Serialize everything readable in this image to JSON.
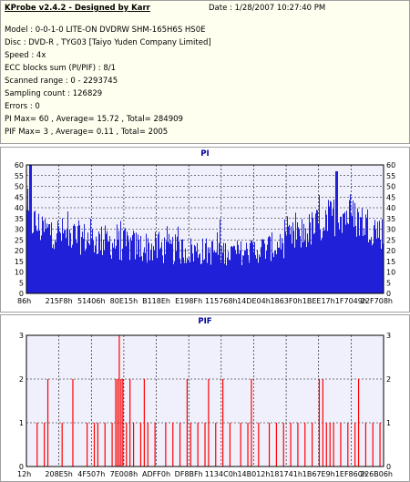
{
  "info": {
    "title": "KProbe v2.4.2 - Designed by Karr",
    "date": "Date : 1/28/2007 10:27:40 PM",
    "lines": [
      "Model : 0-0-1-0 LITE-ON DVDRW SHM-165H6S HS0E",
      "Disc : DVD-R , TYG03 [Taiyo Yuden Company Limited]",
      "Speed : 4x",
      "ECC blocks sum (PI/PIF) : 8/1",
      "Scanned range : 0 - 2293745",
      "Sampling count : 126829",
      "Errors : 0",
      "PI Max= 60 , Average= 15.72 , Total= 284909",
      "PIF Max= 3 , Average= 0.11 , Total= 2005"
    ]
  },
  "colors": {
    "pi": "#2020d8",
    "pif": "#ff0000",
    "plot_bg": "#f0f0fc",
    "grid": "#000000"
  },
  "chart_data": [
    {
      "type": "bar",
      "title": "PI",
      "ylim": [
        0,
        60
      ],
      "yticks": [
        0,
        5,
        10,
        15,
        20,
        25,
        30,
        35,
        40,
        45,
        50,
        55,
        60
      ],
      "xticks": [
        "86h",
        "215F8h",
        "51406h",
        "80E15h",
        "B118Eh",
        "E198Fh",
        "115768h",
        "14DE04h",
        "1863F0h",
        "1BEE17h",
        "1F7049h",
        "22F708h"
      ],
      "grid": true,
      "profile": [
        {
          "x": 0.0,
          "base": 36,
          "noise": 10
        },
        {
          "x": 0.04,
          "base": 30,
          "noise": 8
        },
        {
          "x": 0.15,
          "base": 26,
          "noise": 8
        },
        {
          "x": 0.3,
          "base": 22,
          "noise": 8
        },
        {
          "x": 0.45,
          "base": 20,
          "noise": 7
        },
        {
          "x": 0.6,
          "base": 19,
          "noise": 6
        },
        {
          "x": 0.7,
          "base": 22,
          "noise": 7
        },
        {
          "x": 0.8,
          "base": 30,
          "noise": 9
        },
        {
          "x": 0.88,
          "base": 38,
          "noise": 10
        },
        {
          "x": 0.95,
          "base": 33,
          "noise": 9
        },
        {
          "x": 1.0,
          "base": 28,
          "noise": 8
        }
      ],
      "peaks": [
        {
          "x": 0.01,
          "value": 60
        },
        {
          "x": 0.87,
          "value": 57
        }
      ]
    },
    {
      "type": "bar",
      "title": "PIF",
      "ylim": [
        0,
        3
      ],
      "yticks": [
        0,
        1,
        2,
        3
      ],
      "xticks": [
        "12h",
        "208E5h",
        "4F507h",
        "7E008h",
        "ADFF0h",
        "DF8BFh",
        "1134C0h",
        "14B012h",
        "181741h",
        "1B67E9h",
        "1EF860h",
        "226B06h"
      ],
      "grid": true,
      "spikes": [
        {
          "x": 0.03,
          "value": 1
        },
        {
          "x": 0.05,
          "value": 1
        },
        {
          "x": 0.06,
          "value": 2
        },
        {
          "x": 0.1,
          "value": 1
        },
        {
          "x": 0.13,
          "value": 2
        },
        {
          "x": 0.17,
          "value": 1
        },
        {
          "x": 0.19,
          "value": 1
        },
        {
          "x": 0.2,
          "value": 1
        },
        {
          "x": 0.22,
          "value": 1
        },
        {
          "x": 0.24,
          "value": 1
        },
        {
          "x": 0.25,
          "value": 2
        },
        {
          "x": 0.255,
          "value": 2
        },
        {
          "x": 0.26,
          "value": 3
        },
        {
          "x": 0.265,
          "value": 2
        },
        {
          "x": 0.27,
          "value": 2
        },
        {
          "x": 0.28,
          "value": 1
        },
        {
          "x": 0.29,
          "value": 2
        },
        {
          "x": 0.3,
          "value": 1
        },
        {
          "x": 0.32,
          "value": 1
        },
        {
          "x": 0.33,
          "value": 2
        },
        {
          "x": 0.34,
          "value": 1
        },
        {
          "x": 0.36,
          "value": 1
        },
        {
          "x": 0.39,
          "value": 1
        },
        {
          "x": 0.41,
          "value": 1
        },
        {
          "x": 0.43,
          "value": 1
        },
        {
          "x": 0.45,
          "value": 2
        },
        {
          "x": 0.46,
          "value": 1
        },
        {
          "x": 0.48,
          "value": 1
        },
        {
          "x": 0.5,
          "value": 1
        },
        {
          "x": 0.51,
          "value": 2
        },
        {
          "x": 0.53,
          "value": 1
        },
        {
          "x": 0.55,
          "value": 2
        },
        {
          "x": 0.57,
          "value": 1
        },
        {
          "x": 0.6,
          "value": 1
        },
        {
          "x": 0.62,
          "value": 1
        },
        {
          "x": 0.63,
          "value": 2
        },
        {
          "x": 0.65,
          "value": 1
        },
        {
          "x": 0.68,
          "value": 1
        },
        {
          "x": 0.7,
          "value": 1
        },
        {
          "x": 0.72,
          "value": 1
        },
        {
          "x": 0.74,
          "value": 1
        },
        {
          "x": 0.76,
          "value": 1
        },
        {
          "x": 0.78,
          "value": 1
        },
        {
          "x": 0.8,
          "value": 1
        },
        {
          "x": 0.82,
          "value": 2
        },
        {
          "x": 0.83,
          "value": 2
        },
        {
          "x": 0.84,
          "value": 1
        },
        {
          "x": 0.85,
          "value": 1
        },
        {
          "x": 0.86,
          "value": 1
        },
        {
          "x": 0.88,
          "value": 1
        },
        {
          "x": 0.9,
          "value": 1
        },
        {
          "x": 0.92,
          "value": 1
        },
        {
          "x": 0.93,
          "value": 2
        },
        {
          "x": 0.95,
          "value": 1
        },
        {
          "x": 0.97,
          "value": 1
        },
        {
          "x": 0.99,
          "value": 1
        }
      ]
    }
  ]
}
